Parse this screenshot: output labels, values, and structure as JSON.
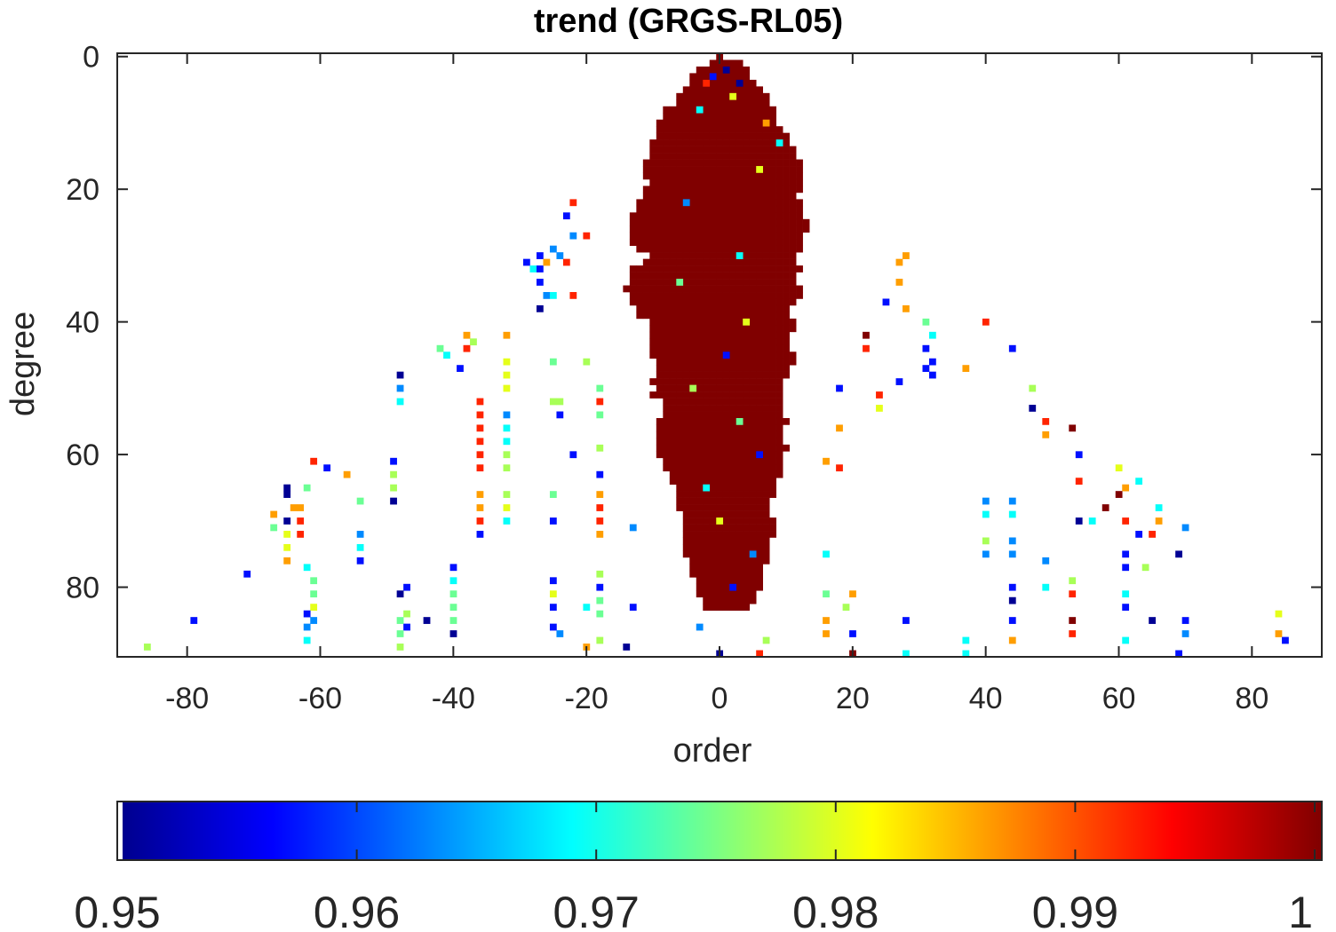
{
  "chart_data": {
    "type": "heatmap",
    "title": "trend (GRGS-RL05)",
    "xlabel": "order",
    "ylabel": "degree",
    "xlim": [
      -90.5,
      90.5
    ],
    "ylim": [
      -0.5,
      90.5
    ],
    "y_reversed": true,
    "xticks": [
      -80,
      -60,
      -40,
      -20,
      0,
      20,
      40,
      60,
      80
    ],
    "yticks": [
      0,
      20,
      40,
      60,
      80
    ],
    "colormap": "jet",
    "clim": [
      0.95,
      1.0
    ],
    "colorbar": {
      "location": "bottom",
      "ticks": [
        0.95,
        0.96,
        0.97,
        0.98,
        0.99,
        1
      ],
      "tick_labels": [
        "0.95",
        "0.96",
        "0.97",
        "0.98",
        "0.99",
        "1"
      ]
    },
    "grid": false,
    "dense_value": 1.0,
    "dense_rows": [
      [
        0,
        0,
        0
      ],
      [
        1,
        -1,
        3
      ],
      [
        2,
        -3,
        4
      ],
      [
        3,
        -4,
        4
      ],
      [
        4,
        -4,
        5
      ],
      [
        5,
        -5,
        6
      ],
      [
        6,
        -6,
        7
      ],
      [
        7,
        -6,
        7
      ],
      [
        8,
        -8,
        8
      ],
      [
        9,
        -8,
        8
      ],
      [
        10,
        -9,
        8
      ],
      [
        11,
        -9,
        9
      ],
      [
        12,
        -9,
        10
      ],
      [
        13,
        -10,
        10
      ],
      [
        14,
        -10,
        11
      ],
      [
        15,
        -10,
        11
      ],
      [
        16,
        -11,
        12
      ],
      [
        17,
        -11,
        12
      ],
      [
        18,
        -11,
        12
      ],
      [
        19,
        -10,
        12
      ],
      [
        20,
        -11,
        12
      ],
      [
        21,
        -11,
        11
      ],
      [
        22,
        -12,
        12
      ],
      [
        23,
        -12,
        12
      ],
      [
        24,
        -13,
        12
      ],
      [
        25,
        -13,
        13
      ],
      [
        26,
        -13,
        13
      ],
      [
        27,
        -13,
        12
      ],
      [
        28,
        -13,
        12
      ],
      [
        29,
        -12,
        12
      ],
      [
        30,
        -10,
        11
      ],
      [
        31,
        -11,
        11
      ],
      [
        32,
        -13,
        12
      ],
      [
        33,
        -13,
        11
      ],
      [
        34,
        -13,
        11
      ],
      [
        35,
        -14,
        12
      ],
      [
        36,
        -13,
        12
      ],
      [
        37,
        -13,
        11
      ],
      [
        38,
        -12,
        10
      ],
      [
        39,
        -12,
        10
      ],
      [
        40,
        -10,
        11
      ],
      [
        41,
        -10,
        11
      ],
      [
        42,
        -10,
        10
      ],
      [
        43,
        -10,
        10
      ],
      [
        44,
        -10,
        10
      ],
      [
        45,
        -10,
        11
      ],
      [
        46,
        -9,
        11
      ],
      [
        47,
        -9,
        10
      ],
      [
        48,
        -9,
        10
      ],
      [
        49,
        -10,
        9
      ],
      [
        50,
        -9,
        9
      ],
      [
        51,
        -10,
        9
      ],
      [
        52,
        -8,
        9
      ],
      [
        53,
        -8,
        9
      ],
      [
        54,
        -8,
        9
      ],
      [
        55,
        -9,
        10
      ],
      [
        56,
        -9,
        9
      ],
      [
        57,
        -9,
        9
      ],
      [
        58,
        -9,
        9
      ],
      [
        59,
        -9,
        10
      ],
      [
        60,
        -9,
        9
      ],
      [
        61,
        -8,
        9
      ],
      [
        62,
        -8,
        9
      ],
      [
        63,
        -7,
        9
      ],
      [
        64,
        -7,
        8
      ],
      [
        65,
        -6,
        8
      ],
      [
        66,
        -6,
        8
      ],
      [
        67,
        -6,
        7
      ],
      [
        68,
        -6,
        7
      ],
      [
        69,
        -5,
        7
      ],
      [
        70,
        -5,
        8
      ],
      [
        71,
        -5,
        8
      ],
      [
        72,
        -5,
        8
      ],
      [
        73,
        -5,
        7
      ],
      [
        74,
        -5,
        7
      ],
      [
        75,
        -5,
        7
      ],
      [
        76,
        -4,
        7
      ],
      [
        77,
        -4,
        6
      ],
      [
        78,
        -4,
        6
      ],
      [
        79,
        -3,
        6
      ],
      [
        80,
        -3,
        6
      ],
      [
        81,
        -3,
        5
      ],
      [
        82,
        -2,
        5
      ],
      [
        83,
        -2,
        4
      ]
    ],
    "cells": [
      [
        40,
        40,
        0.992
      ],
      [
        44,
        44,
        0.957
      ],
      [
        37,
        47,
        0.986
      ],
      [
        47,
        50,
        0.977
      ],
      [
        47,
        53,
        0.951
      ],
      [
        49,
        55,
        0.992
      ],
      [
        49,
        57,
        0.986
      ],
      [
        53,
        56,
        1.0
      ],
      [
        54,
        60,
        0.957
      ],
      [
        54,
        64,
        0.992
      ],
      [
        60,
        62,
        0.98
      ],
      [
        60,
        66,
        1.0
      ],
      [
        61,
        65,
        0.986
      ],
      [
        63,
        64,
        0.969
      ],
      [
        66,
        68,
        0.969
      ],
      [
        66,
        70,
        0.986
      ],
      [
        70,
        71,
        0.963
      ],
      [
        54,
        70,
        0.951
      ],
      [
        56,
        70,
        0.969
      ],
      [
        58,
        68,
        1.0
      ],
      [
        61,
        70,
        0.992
      ],
      [
        63,
        72,
        0.957
      ],
      [
        65,
        72,
        0.992
      ],
      [
        61,
        75,
        0.957
      ],
      [
        69,
        75,
        0.951
      ],
      [
        61,
        77,
        0.957
      ],
      [
        64,
        77,
        0.977
      ],
      [
        61,
        81,
        0.969
      ],
      [
        61,
        83,
        0.957
      ],
      [
        65,
        85,
        0.951
      ],
      [
        70,
        85,
        0.957
      ],
      [
        70,
        87,
        0.963
      ],
      [
        61,
        88,
        0.969
      ],
      [
        69,
        90,
        0.957
      ],
      [
        84,
        84,
        0.98
      ],
      [
        84,
        87,
        0.986
      ],
      [
        85,
        88,
        0.957
      ],
      [
        40,
        67,
        0.963
      ],
      [
        44,
        67,
        0.963
      ],
      [
        40,
        69,
        0.969
      ],
      [
        44,
        69,
        0.969
      ],
      [
        40,
        73,
        0.977
      ],
      [
        44,
        73,
        0.963
      ],
      [
        40,
        75,
        0.963
      ],
      [
        44,
        75,
        0.963
      ],
      [
        44,
        80,
        0.957
      ],
      [
        44,
        82,
        0.951
      ],
      [
        44,
        85,
        0.957
      ],
      [
        44,
        88,
        0.986
      ],
      [
        49,
        76,
        0.963
      ],
      [
        49,
        80,
        0.969
      ],
      [
        53,
        79,
        0.977
      ],
      [
        53,
        81,
        0.992
      ],
      [
        53,
        85,
        1.0
      ],
      [
        53,
        87,
        0.992
      ],
      [
        37,
        88,
        0.969
      ],
      [
        37,
        90,
        0.969
      ],
      [
        28,
        90,
        0.969
      ],
      [
        28,
        85,
        0.957
      ],
      [
        31,
        40,
        0.974
      ],
      [
        32,
        42,
        0.969
      ],
      [
        31,
        44,
        0.957
      ],
      [
        32,
        46,
        0.957
      ],
      [
        31,
        47,
        0.957
      ],
      [
        32,
        48,
        0.957
      ],
      [
        27,
        49,
        0.957
      ],
      [
        24,
        51,
        0.992
      ],
      [
        24,
        53,
        0.98
      ],
      [
        22,
        42,
        1.0
      ],
      [
        22,
        44,
        0.992
      ],
      [
        28,
        38,
        0.986
      ],
      [
        25,
        37,
        0.957
      ],
      [
        27,
        31,
        0.986
      ],
      [
        28,
        30,
        0.986
      ],
      [
        27,
        34,
        0.986
      ],
      [
        -38,
        44,
        0.992
      ],
      [
        -38,
        42,
        0.986
      ],
      [
        -37,
        43,
        0.977
      ],
      [
        -32,
        42,
        0.986
      ],
      [
        -32,
        46,
        0.98
      ],
      [
        -32,
        48,
        0.98
      ],
      [
        -36,
        52,
        0.992
      ],
      [
        -36,
        54,
        0.992
      ],
      [
        -36,
        56,
        0.992
      ],
      [
        -36,
        58,
        0.992
      ],
      [
        -36,
        60,
        0.992
      ],
      [
        -36,
        62,
        0.992
      ],
      [
        -36,
        66,
        0.986
      ],
      [
        -36,
        68,
        0.986
      ],
      [
        -36,
        70,
        0.992
      ],
      [
        -36,
        72,
        0.957
      ],
      [
        -32,
        50,
        0.98
      ],
      [
        -32,
        54,
        0.963
      ],
      [
        -32,
        56,
        0.969
      ],
      [
        -32,
        58,
        0.969
      ],
      [
        -32,
        60,
        0.977
      ],
      [
        -32,
        62,
        0.977
      ],
      [
        -32,
        66,
        0.977
      ],
      [
        -32,
        68,
        0.98
      ],
      [
        -32,
        70,
        0.969
      ],
      [
        -48,
        48,
        0.951
      ],
      [
        -48,
        50,
        0.963
      ],
      [
        -48,
        52,
        0.969
      ],
      [
        -49,
        61,
        0.957
      ],
      [
        -49,
        63,
        0.977
      ],
      [
        -49,
        65,
        0.977
      ],
      [
        -49,
        67,
        0.951
      ],
      [
        -61,
        61,
        0.992
      ],
      [
        -59,
        62,
        0.957
      ],
      [
        -56,
        63,
        0.986
      ],
      [
        -65,
        65,
        0.951
      ],
      [
        -62,
        65,
        0.974
      ],
      [
        -65,
        66,
        0.951
      ],
      [
        -64,
        68,
        0.986
      ],
      [
        -63,
        68,
        0.986
      ],
      [
        -67,
        69,
        0.986
      ],
      [
        -65,
        70,
        0.951
      ],
      [
        -63,
        70,
        0.992
      ],
      [
        -67,
        71,
        0.974
      ],
      [
        -65,
        72,
        0.98
      ],
      [
        -63,
        72,
        0.992
      ],
      [
        -54,
        67,
        0.974
      ],
      [
        -54,
        72,
        0.963
      ],
      [
        -54,
        74,
        0.969
      ],
      [
        -54,
        76,
        0.957
      ],
      [
        -65,
        74,
        0.98
      ],
      [
        -65,
        76,
        0.986
      ],
      [
        -62,
        77,
        0.969
      ],
      [
        -71,
        78,
        0.957
      ],
      [
        -61,
        79,
        0.974
      ],
      [
        -61,
        81,
        0.974
      ],
      [
        -61,
        83,
        0.98
      ],
      [
        -62,
        84,
        0.957
      ],
      [
        -61,
        85,
        0.963
      ],
      [
        -62,
        86,
        0.963
      ],
      [
        -62,
        88,
        0.969
      ],
      [
        -79,
        85,
        0.957
      ],
      [
        -86,
        89,
        0.977
      ],
      [
        -47,
        80,
        0.957
      ],
      [
        -48,
        81,
        0.951
      ],
      [
        -47,
        84,
        0.977
      ],
      [
        -48,
        85,
        0.974
      ],
      [
        -47,
        86,
        0.957
      ],
      [
        -48,
        87,
        0.974
      ],
      [
        -48,
        89,
        0.977
      ],
      [
        -44,
        85,
        0.951
      ],
      [
        -40,
        77,
        0.957
      ],
      [
        -40,
        79,
        0.969
      ],
      [
        -40,
        81,
        0.974
      ],
      [
        -40,
        83,
        0.974
      ],
      [
        -40,
        85,
        0.974
      ],
      [
        -40,
        87,
        0.951
      ],
      [
        -42,
        44,
        0.974
      ],
      [
        -41,
        45,
        0.969
      ],
      [
        -39,
        47,
        0.957
      ],
      [
        -29,
        31,
        0.957
      ],
      [
        -28,
        32,
        0.969
      ],
      [
        -27,
        32,
        0.957
      ],
      [
        -25,
        29,
        0.963
      ],
      [
        -24,
        30,
        0.963
      ],
      [
        -27,
        30,
        0.957
      ],
      [
        -26,
        31,
        0.986
      ],
      [
        -23,
        31,
        0.992
      ],
      [
        -27,
        34,
        0.957
      ],
      [
        -26,
        36,
        0.963
      ],
      [
        -25,
        36,
        0.969
      ],
      [
        -27,
        38,
        0.951
      ],
      [
        -23,
        24,
        0.957
      ],
      [
        -22,
        22,
        0.992
      ],
      [
        -22,
        27,
        0.963
      ],
      [
        -20,
        27,
        0.992
      ],
      [
        -22,
        36,
        0.992
      ],
      [
        -20,
        46,
        0.977
      ],
      [
        -25,
        46,
        0.974
      ],
      [
        -25,
        52,
        0.977
      ],
      [
        -24,
        52,
        0.977
      ],
      [
        -24,
        54,
        0.957
      ],
      [
        -22,
        60,
        0.957
      ],
      [
        -25,
        66,
        0.974
      ],
      [
        -25,
        70,
        0.957
      ],
      [
        -25,
        79,
        0.957
      ],
      [
        -25,
        81,
        0.98
      ],
      [
        -25,
        83,
        0.957
      ],
      [
        -25,
        86,
        0.957
      ],
      [
        -24,
        87,
        0.963
      ],
      [
        -20,
        83,
        0.969
      ],
      [
        -20,
        89,
        0.986
      ],
      [
        -14,
        89,
        0.951
      ],
      [
        -13,
        83,
        0.957
      ],
      [
        -13,
        71,
        0.963
      ],
      [
        -18,
        50,
        0.974
      ],
      [
        -18,
        52,
        0.992
      ],
      [
        -18,
        54,
        0.974
      ],
      [
        -18,
        59,
        0.977
      ],
      [
        -18,
        63,
        0.957
      ],
      [
        -18,
        66,
        0.986
      ],
      [
        -18,
        68,
        0.992
      ],
      [
        -18,
        70,
        0.992
      ],
      [
        -18,
        72,
        0.986
      ],
      [
        -18,
        78,
        0.977
      ],
      [
        -18,
        80,
        0.957
      ],
      [
        -18,
        82,
        0.974
      ],
      [
        -18,
        84,
        0.974
      ],
      [
        -18,
        88,
        0.977
      ],
      [
        16,
        61,
        0.986
      ],
      [
        18,
        62,
        0.992
      ],
      [
        18,
        50,
        0.957
      ],
      [
        18,
        56,
        0.986
      ],
      [
        16,
        81,
        0.974
      ],
      [
        20,
        81,
        0.986
      ],
      [
        19,
        83,
        0.977
      ],
      [
        16,
        85,
        0.986
      ],
      [
        16,
        87,
        0.986
      ],
      [
        20,
        87,
        0.957
      ],
      [
        20,
        90,
        1.0
      ],
      [
        16,
        75,
        0.969
      ],
      [
        1,
        2,
        0.951
      ],
      [
        3,
        4,
        0.951
      ],
      [
        -1,
        3,
        0.957
      ],
      [
        -3,
        8,
        0.969
      ],
      [
        2,
        6,
        0.98
      ],
      [
        7,
        10,
        0.986
      ],
      [
        9,
        13,
        0.969
      ],
      [
        6,
        17,
        0.98
      ],
      [
        -2,
        4,
        0.992
      ],
      [
        3,
        30,
        0.969
      ],
      [
        -6,
        34,
        0.974
      ],
      [
        4,
        40,
        0.98
      ],
      [
        1,
        45,
        0.957
      ],
      [
        -4,
        50,
        0.977
      ],
      [
        3,
        55,
        0.974
      ],
      [
        6,
        60,
        0.957
      ],
      [
        -2,
        65,
        0.969
      ],
      [
        0,
        70,
        0.98
      ],
      [
        5,
        75,
        0.963
      ],
      [
        2,
        80,
        0.957
      ],
      [
        -3,
        86,
        0.963
      ],
      [
        7,
        88,
        0.977
      ],
      [
        0,
        90,
        0.951
      ],
      [
        6,
        90,
        0.992
      ],
      [
        -5,
        22,
        0.963
      ]
    ]
  }
}
